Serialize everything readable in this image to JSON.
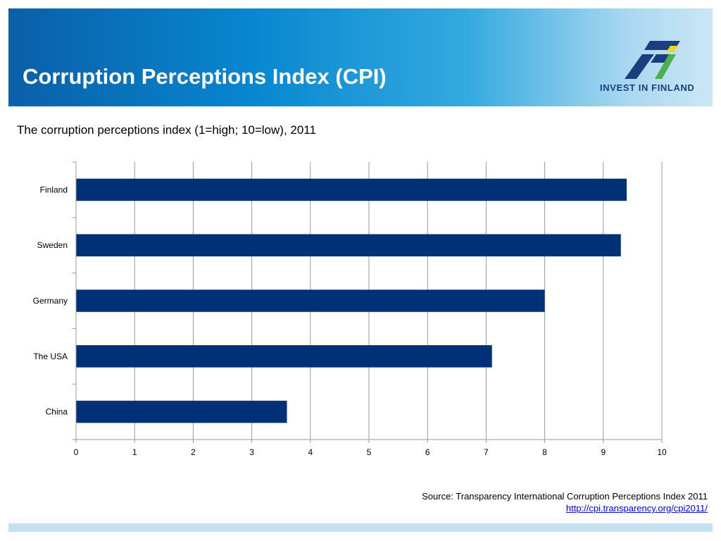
{
  "header": {
    "title": "Corruption Perceptions Index (CPI)",
    "logo_text": "INVEST IN FINLAND",
    "logo_icon": "invest-in-finland-logo-icon",
    "colors": {
      "band_start": "#0a5fa8",
      "band_end": "#cbe7f6",
      "logo_blue": "#1b3f7d",
      "logo_green": "#4caf50",
      "logo_yellow": "#f7d417"
    }
  },
  "subtitle": "The corruption perceptions index (1=high; 10=low), 2011",
  "chart_data": {
    "type": "bar",
    "orientation": "horizontal",
    "title": "",
    "categories": [
      "Finland",
      "Sweden",
      "Germany",
      "The USA",
      "China"
    ],
    "values": [
      9.4,
      9.3,
      8.0,
      7.1,
      3.6
    ],
    "xlim": [
      0,
      10
    ],
    "x_ticks": [
      "0",
      "1",
      "2",
      "3",
      "4",
      "5",
      "6",
      "7",
      "8",
      "9",
      "10"
    ],
    "grid": "vertical",
    "bar_color": "#003176",
    "grid_color": "#9a9a9a"
  },
  "source": {
    "text": "Source: Transparency International Corruption Perceptions Index 2011",
    "link": "http://cpi.transparency.org/cpi2011/"
  },
  "footer": {
    "bar_color": "#c4e1f2"
  }
}
